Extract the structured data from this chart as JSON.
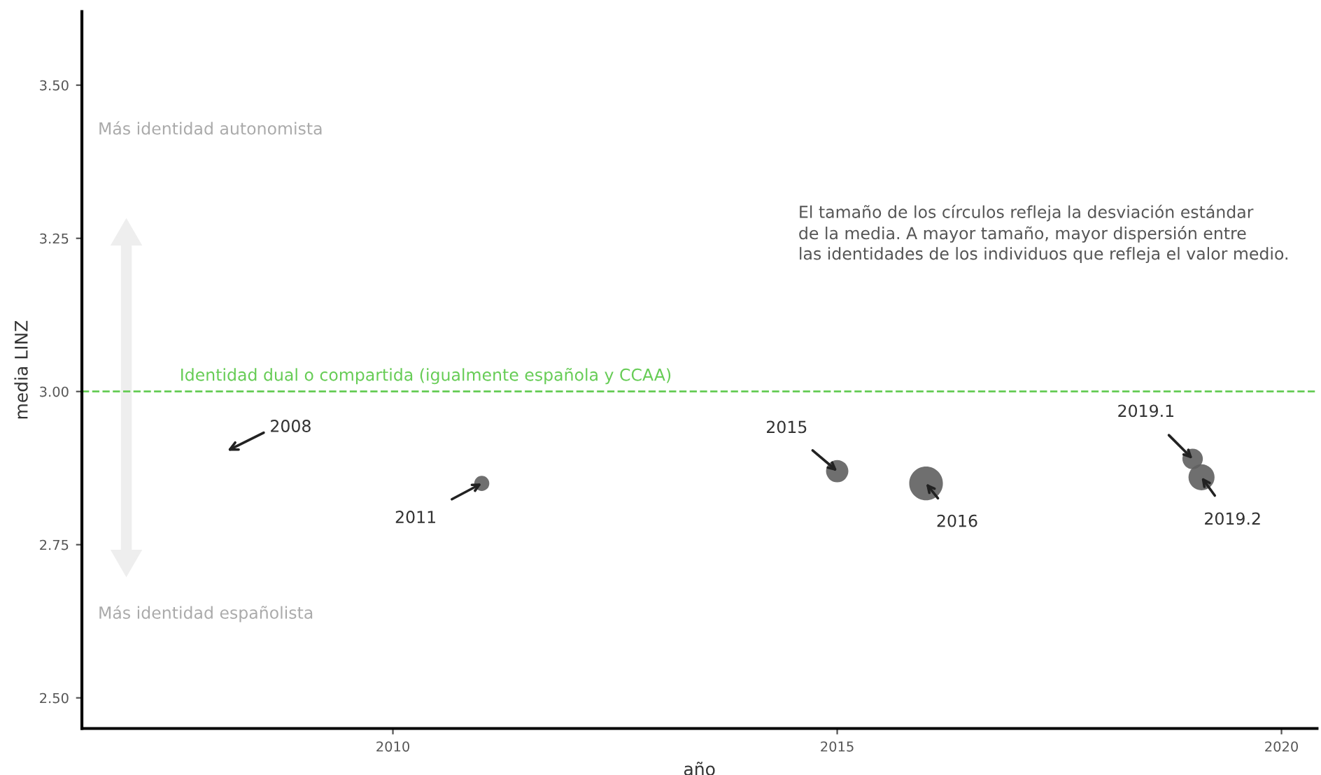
{
  "chart_data": {
    "type": "bubble",
    "xlabel": "año",
    "ylabel": "media LINZ",
    "x": [
      2011,
      2015,
      2016,
      2019.0,
      2019.1
    ],
    "values": [
      2.85,
      2.87,
      2.85,
      2.89,
      2.86
    ],
    "sizes": [
      0.2,
      0.44,
      1,
      0.37,
      0.6
    ],
    "color": "#5f5f5f",
    "xlim": [
      2006.5,
      2020.4
    ],
    "xticks": [
      2010,
      2015,
      2020
    ],
    "ylim": [
      2.45,
      3.62
    ],
    "yticks": [
      {
        "value": 2.5,
        "label": "2.50"
      },
      {
        "value": 2.75,
        "label": "2.75"
      },
      {
        "value": 3.0,
        "label": "3.00"
      },
      {
        "value": 3.25,
        "label": "3.25"
      },
      {
        "value": 3.5,
        "label": "3.50"
      }
    ],
    "ref_lines": [
      {
        "axis": "y",
        "value": 3.0,
        "label": "Identidad dual o compartida (igualmente española y CCAA)",
        "color": "#66cc55",
        "line_style": "dashed"
      }
    ],
    "annotations": [
      "2008",
      {
        "text": "2011",
        "x": 2011,
        "y": 2.85
      },
      {
        "text": "2015",
        "x": 2015,
        "y": 2.87
      },
      {
        "text": "2016",
        "x": 2016,
        "y": 2.85
      },
      {
        "text": "2019.1",
        "x": 2019.0,
        "y": 2.89
      },
      {
        "text": "2019.2",
        "x": 2019.1,
        "y": 2.86
      },
      "Más identidad autonomista",
      "Más identidad españolista",
      "El tamaño de los círculos refleja la desviación estándar\nde la media. A mayor tamaño, mayor dispersión entre\nlas identidades de los individuos que refleja el valor medio."
    ],
    "grid": false,
    "legend": false
  }
}
